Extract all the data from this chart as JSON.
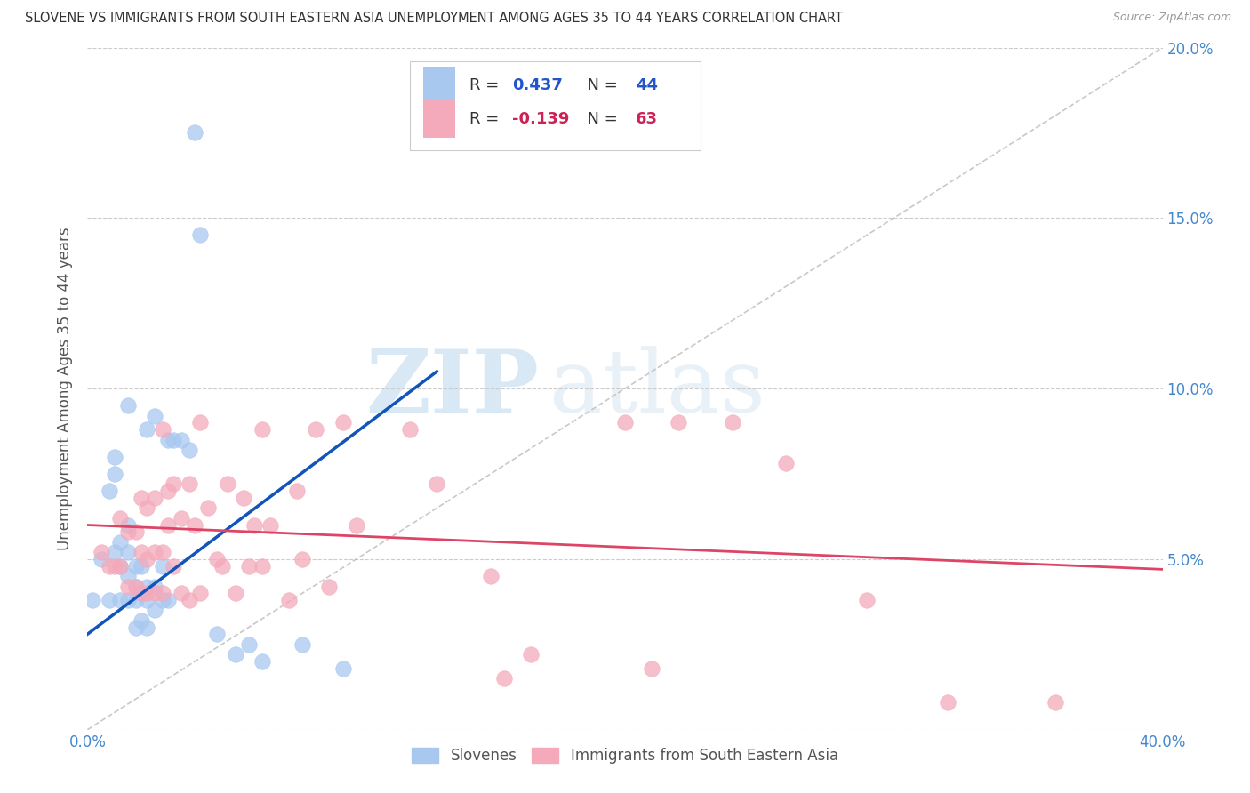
{
  "title": "SLOVENE VS IMMIGRANTS FROM SOUTH EASTERN ASIA UNEMPLOYMENT AMONG AGES 35 TO 44 YEARS CORRELATION CHART",
  "source": "Source: ZipAtlas.com",
  "ylabel": "Unemployment Among Ages 35 to 44 years",
  "xlim": [
    0.0,
    0.4
  ],
  "ylim": [
    0.0,
    0.2
  ],
  "xticks": [
    0.0,
    0.05,
    0.1,
    0.15,
    0.2,
    0.25,
    0.3,
    0.35,
    0.4
  ],
  "yticks": [
    0.0,
    0.05,
    0.1,
    0.15,
    0.2
  ],
  "blue_R": "0.437",
  "blue_N": "44",
  "pink_R": "-0.139",
  "pink_N": "63",
  "blue_color": "#A8C8F0",
  "pink_color": "#F4AABB",
  "blue_line_color": "#1155BB",
  "pink_line_color": "#DD4466",
  "ref_line_color": "#BBBBBB",
  "watermark_zip": "ZIP",
  "watermark_atlas": "atlas",
  "legend_label_blue": "Slovenes",
  "legend_label_pink": "Immigrants from South Eastern Asia",
  "tick_color": "#4488CC",
  "title_color": "#333333",
  "blue_scatter_x": [
    0.002,
    0.005,
    0.008,
    0.008,
    0.01,
    0.01,
    0.01,
    0.012,
    0.012,
    0.012,
    0.015,
    0.015,
    0.015,
    0.015,
    0.015,
    0.018,
    0.018,
    0.018,
    0.018,
    0.02,
    0.02,
    0.02,
    0.022,
    0.022,
    0.022,
    0.022,
    0.025,
    0.025,
    0.025,
    0.028,
    0.028,
    0.03,
    0.03,
    0.032,
    0.035,
    0.038,
    0.04,
    0.042,
    0.048,
    0.055,
    0.06,
    0.065,
    0.08,
    0.095
  ],
  "blue_scatter_y": [
    0.038,
    0.05,
    0.038,
    0.07,
    0.052,
    0.075,
    0.08,
    0.038,
    0.048,
    0.055,
    0.038,
    0.045,
    0.052,
    0.06,
    0.095,
    0.03,
    0.038,
    0.042,
    0.048,
    0.032,
    0.04,
    0.048,
    0.03,
    0.038,
    0.042,
    0.088,
    0.035,
    0.042,
    0.092,
    0.038,
    0.048,
    0.038,
    0.085,
    0.085,
    0.085,
    0.082,
    0.175,
    0.145,
    0.028,
    0.022,
    0.025,
    0.02,
    0.025,
    0.018
  ],
  "pink_scatter_x": [
    0.005,
    0.008,
    0.01,
    0.012,
    0.012,
    0.015,
    0.015,
    0.018,
    0.018,
    0.02,
    0.02,
    0.02,
    0.022,
    0.022,
    0.022,
    0.025,
    0.025,
    0.025,
    0.028,
    0.028,
    0.028,
    0.03,
    0.03,
    0.032,
    0.032,
    0.035,
    0.035,
    0.038,
    0.038,
    0.04,
    0.042,
    0.042,
    0.045,
    0.048,
    0.05,
    0.052,
    0.055,
    0.058,
    0.06,
    0.062,
    0.065,
    0.065,
    0.068,
    0.075,
    0.078,
    0.08,
    0.085,
    0.09,
    0.095,
    0.1,
    0.12,
    0.13,
    0.15,
    0.155,
    0.165,
    0.2,
    0.21,
    0.22,
    0.24,
    0.26,
    0.29,
    0.32,
    0.36
  ],
  "pink_scatter_y": [
    0.052,
    0.048,
    0.048,
    0.048,
    0.062,
    0.042,
    0.058,
    0.042,
    0.058,
    0.04,
    0.052,
    0.068,
    0.04,
    0.05,
    0.065,
    0.04,
    0.052,
    0.068,
    0.04,
    0.052,
    0.088,
    0.06,
    0.07,
    0.048,
    0.072,
    0.04,
    0.062,
    0.038,
    0.072,
    0.06,
    0.04,
    0.09,
    0.065,
    0.05,
    0.048,
    0.072,
    0.04,
    0.068,
    0.048,
    0.06,
    0.048,
    0.088,
    0.06,
    0.038,
    0.07,
    0.05,
    0.088,
    0.042,
    0.09,
    0.06,
    0.088,
    0.072,
    0.045,
    0.015,
    0.022,
    0.09,
    0.018,
    0.09,
    0.09,
    0.078,
    0.038,
    0.008,
    0.008
  ],
  "blue_trend_x": [
    0.0,
    0.13
  ],
  "blue_trend_y_start": 0.028,
  "blue_trend_y_end": 0.105,
  "pink_trend_x": [
    0.0,
    0.4
  ],
  "pink_trend_y_start": 0.06,
  "pink_trend_y_end": 0.047
}
